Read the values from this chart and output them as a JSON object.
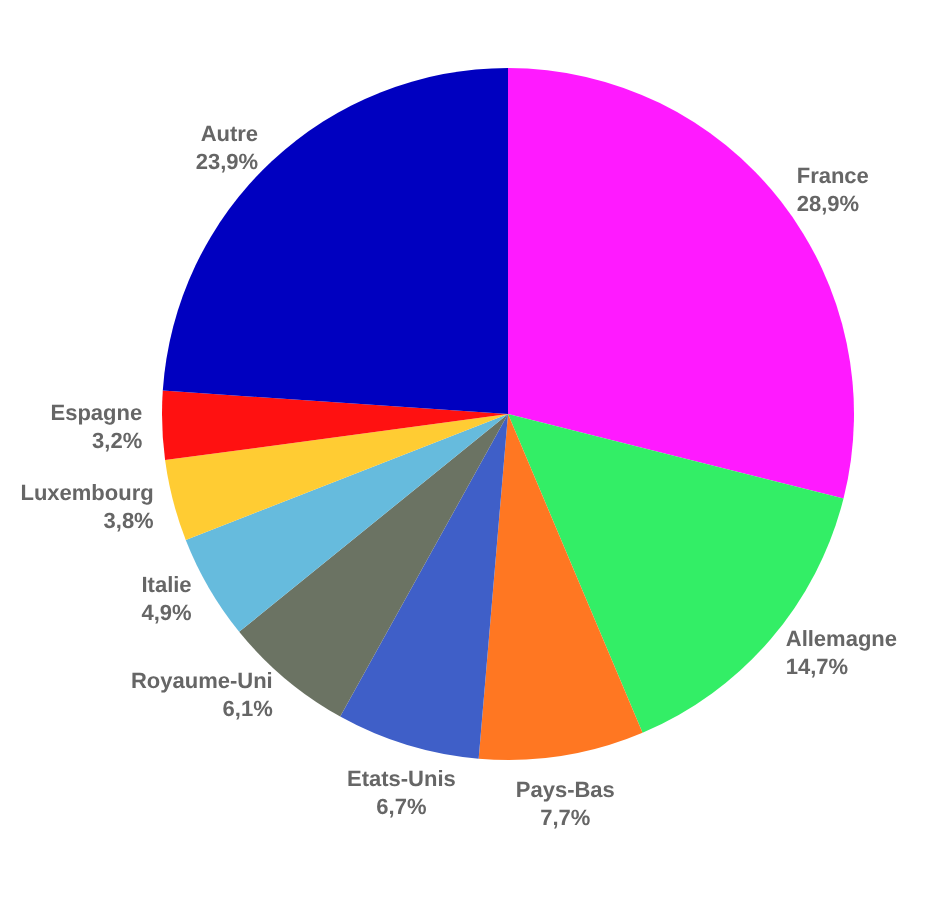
{
  "chart_data": {
    "type": "pie",
    "categories": [
      "France",
      "Allemagne",
      "Pays-Bas",
      "Etats-Unis",
      "Royaume-Uni",
      "Italie",
      "Luxembourg",
      "Espagne",
      "Autre"
    ],
    "values": [
      28.9,
      14.7,
      7.7,
      6.7,
      6.1,
      4.9,
      3.8,
      3.2,
      23.9
    ],
    "value_labels": [
      "28,9%",
      "14,7%",
      "7,7%",
      "6,7%",
      "6,1%",
      "4,9%",
      "3,8%",
      "3,2%",
      "23,9%"
    ],
    "colors": [
      "#ff1aff",
      "#33ee66",
      "#ff7722",
      "#3f5fc8",
      "#6b7363",
      "#66bbdd",
      "#ffcc33",
      "#ff1111",
      "#0000c0"
    ]
  }
}
